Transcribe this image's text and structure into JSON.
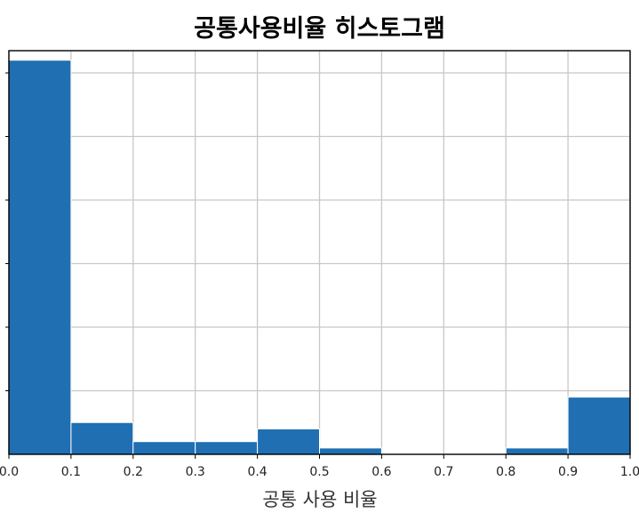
{
  "chart_data": {
    "type": "bar",
    "title": "공통사용비율 히스토그램",
    "xlabel": "공통 사용 비율",
    "ylabel": "",
    "bins": [
      {
        "start": 0.0,
        "end": 0.1,
        "value": 62
      },
      {
        "start": 0.1,
        "end": 0.2,
        "value": 5
      },
      {
        "start": 0.2,
        "end": 0.3,
        "value": 2
      },
      {
        "start": 0.3,
        "end": 0.4,
        "value": 2
      },
      {
        "start": 0.4,
        "end": 0.5,
        "value": 4
      },
      {
        "start": 0.5,
        "end": 0.6,
        "value": 1
      },
      {
        "start": 0.6,
        "end": 0.7,
        "value": 0
      },
      {
        "start": 0.7,
        "end": 0.8,
        "value": 0
      },
      {
        "start": 0.8,
        "end": 0.9,
        "value": 1
      },
      {
        "start": 0.9,
        "end": 1.0,
        "value": 9
      }
    ],
    "x_ticks": [
      "0.0",
      "0.1",
      "0.2",
      "0.3",
      "0.4",
      "0.5",
      "0.6",
      "0.7",
      "0.8",
      "0.9",
      "1.0"
    ],
    "xlim": [
      0.0,
      1.0
    ],
    "ylim": [
      0,
      63.5
    ],
    "y_gridlines": [
      10,
      20,
      30,
      40,
      50,
      60
    ],
    "grid": true,
    "bar_color": "#1f6fb2",
    "grid_color": "#c8c8c8"
  }
}
